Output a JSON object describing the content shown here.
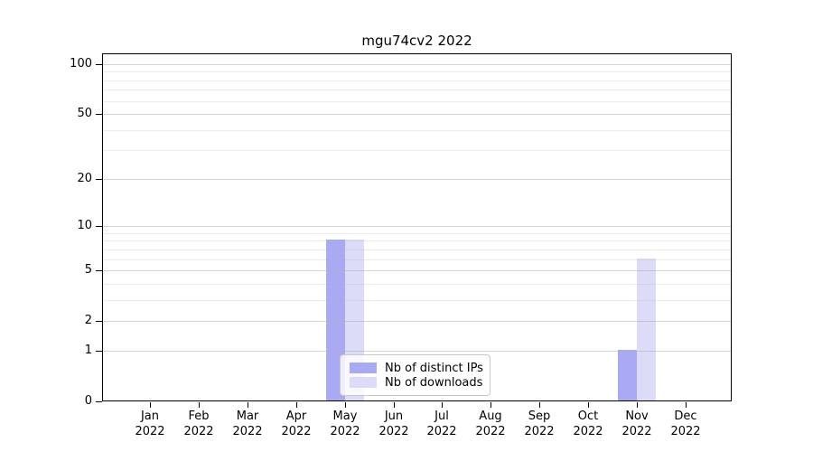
{
  "chart_data": {
    "type": "bar",
    "title": "mgu74cv2 2022",
    "x": [
      "Jan",
      "Feb",
      "Mar",
      "Apr",
      "May",
      "Jun",
      "Jul",
      "Aug",
      "Sep",
      "Oct",
      "Nov",
      "Dec"
    ],
    "x_year": "2022",
    "series": [
      {
        "name": "Nb of distinct IPs",
        "color": "#aaaaf4",
        "values": [
          0,
          0,
          0,
          0,
          8,
          0,
          0,
          0,
          0,
          0,
          1,
          0
        ]
      },
      {
        "name": "Nb of downloads",
        "color": "#dcdcf9",
        "values": [
          0,
          0,
          0,
          0,
          8,
          0,
          0,
          0,
          0,
          0,
          6,
          0
        ]
      }
    ],
    "xlabel": "",
    "ylabel": "",
    "yscale": "log1p",
    "ylim": [
      0,
      116
    ],
    "yticks_major": [
      0,
      1,
      2,
      5,
      10,
      20,
      50,
      100
    ],
    "yticks_minor": [
      3,
      4,
      6,
      7,
      8,
      9,
      30,
      40,
      60,
      70,
      80,
      90
    ],
    "grid": "both",
    "legend_position": "lower-center-inside"
  }
}
